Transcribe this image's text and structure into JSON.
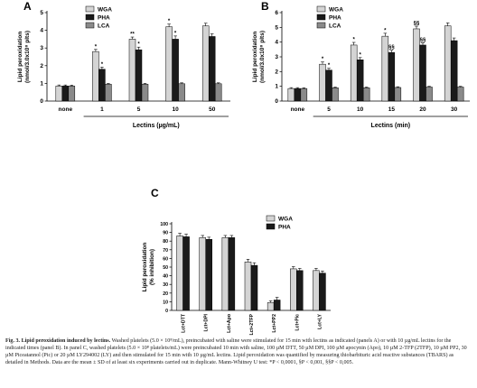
{
  "colors": {
    "wga": "#d4d4d4",
    "pha": "#1a1a1a",
    "lca": "#8a8a8a",
    "axis": "#000000"
  },
  "chart_data": [
    {
      "type": "bar",
      "panel": "A",
      "xlabel": "Lectins (µg/mL)",
      "ylabel_line1": "Lipid peroxidation",
      "ylabel_line2": "(nmol/3.0x10⁸ plts)",
      "ylim": [
        0,
        5
      ],
      "yticks": [
        "0",
        "1",
        "2",
        "3",
        "4",
        "5"
      ],
      "categories": [
        "none",
        "1",
        "5",
        "10",
        "50"
      ],
      "legend_position": "top-left",
      "series": [
        {
          "name": "WGA",
          "values": [
            0.85,
            2.8,
            3.5,
            4.2,
            4.25
          ],
          "errors": [
            0.06,
            0.12,
            0.12,
            0.15,
            0.15
          ],
          "marks": [
            "",
            "*",
            "**",
            "*",
            ""
          ]
        },
        {
          "name": "PHA",
          "values": [
            0.85,
            1.8,
            2.9,
            3.5,
            3.65
          ],
          "errors": [
            0.06,
            0.12,
            0.15,
            0.18,
            0.15
          ],
          "marks": [
            "",
            "*",
            "*",
            "*",
            ""
          ]
        },
        {
          "name": "LCA",
          "values": [
            0.85,
            0.95,
            0.95,
            0.98,
            0.98
          ],
          "errors": [
            0.05,
            0.05,
            0.05,
            0.05,
            0.05
          ],
          "marks": [
            "",
            "",
            "",
            "",
            ""
          ]
        }
      ]
    },
    {
      "type": "bar",
      "panel": "B",
      "xlabel": "Lectins (min)",
      "ylabel_line1": "Lipid peroxidation",
      "ylabel_line2": "(nmol/3.0x10⁸ plts)",
      "ylim": [
        0,
        6
      ],
      "yticks": [
        "0",
        "1",
        "2",
        "3",
        "4",
        "5",
        "6"
      ],
      "categories": [
        "none",
        "5",
        "10",
        "15",
        "20",
        "30"
      ],
      "legend_position": "top-left",
      "series": [
        {
          "name": "WGA",
          "values": [
            0.85,
            2.5,
            3.8,
            4.4,
            4.9,
            5.1
          ],
          "errors": [
            0.06,
            0.15,
            0.18,
            0.2,
            0.18,
            0.2
          ],
          "marks": [
            "",
            "*",
            "*",
            "*",
            "§§",
            ""
          ]
        },
        {
          "name": "PHA",
          "values": [
            0.85,
            2.1,
            2.8,
            3.3,
            3.8,
            4.1
          ],
          "errors": [
            0.06,
            0.12,
            0.15,
            0.15,
            0.15,
            0.18
          ],
          "marks": [
            "",
            "*",
            "*",
            "§§",
            "§§",
            ""
          ]
        },
        {
          "name": "LCA",
          "values": [
            0.85,
            0.9,
            0.9,
            0.92,
            0.95,
            0.95
          ],
          "errors": [
            0.05,
            0.05,
            0.05,
            0.05,
            0.05,
            0.05
          ],
          "marks": [
            "",
            "",
            "",
            "",
            "",
            ""
          ]
        }
      ]
    },
    {
      "type": "bar",
      "panel": "C",
      "xlabel": "",
      "ylabel_line1": "Lipid peroxidation",
      "ylabel_line2": "(% inhibition)",
      "ylim": [
        0,
        100
      ],
      "yticks": [
        "0",
        "10",
        "20",
        "30",
        "40",
        "50",
        "60",
        "70",
        "80",
        "90",
        "100"
      ],
      "categories": [
        "Lct+DTT",
        "Lct+DPI",
        "Lct+Apo",
        "Lct+2TFP",
        "Lct+PP2",
        "Lct+Pic",
        "Lct+LY"
      ],
      "legend_position": "top-right",
      "series": [
        {
          "name": "WGA",
          "values": [
            86,
            84,
            84,
            56,
            9,
            48,
            46
          ],
          "errors": [
            3,
            2.5,
            2.5,
            3,
            2,
            2.5,
            2.5
          ],
          "marks": [
            "",
            "",
            "",
            "",
            "",
            "",
            ""
          ]
        },
        {
          "name": "PHA",
          "values": [
            85,
            82,
            84,
            52,
            12,
            46,
            43
          ],
          "errors": [
            3,
            2.5,
            2.5,
            3,
            3,
            2.5,
            2.5
          ],
          "marks": [
            "",
            "",
            "",
            "",
            "",
            "",
            ""
          ]
        }
      ]
    }
  ],
  "caption": {
    "label": "Fig. 3. Lipid peroxidation induced by lectins.",
    "text": " Washed platelets (5.0 × 10⁸/mL), preincubated with saline were stimulated for 15 min with lectins as indicated (panels A) or with 10 µg/mL lectins for the indicated times (panel B). In panel C, washed platelets (5.0 × 10⁸ platelets/mL) were preincubated 10 min with saline, 100 µM DTT, 50 µM DPI, 100 µM apocynin (Apo), 10 µM 2-TFP (2TFP), 10 µM PP2, 30 µM Piceatannol (Pic) or 20 µM LY294002 (LY) and then stimulated for 15 min with 10 µg/mL lectins. Lipid peroxidation was quantified by measuring thiobarbituric acid reactive substances (TBARS) as detailed in Methods. Data are the mean ± SD of at least six experiments carried out in duplicate. Mann-Whitney U test: *P < 0,0001, §P < 0,001, §§P < 0,005."
  }
}
